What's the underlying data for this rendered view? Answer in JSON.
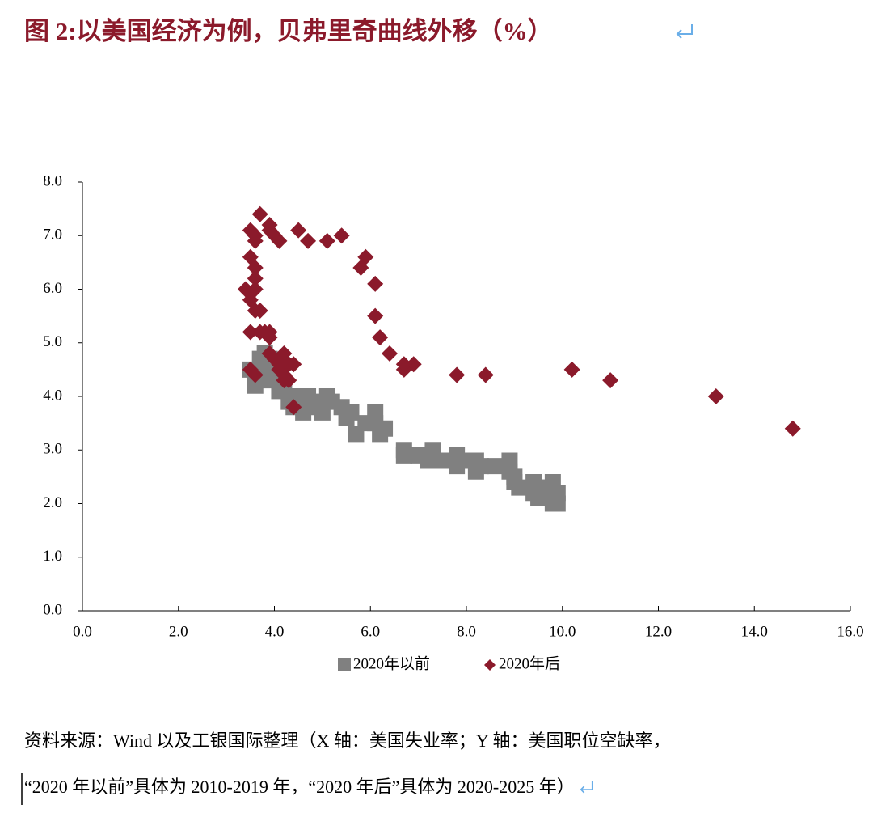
{
  "chart_data": {
    "type": "scatter",
    "title": "图 2:以美国经济为例，贝弗里奇曲线外移（%）",
    "note": [
      "资料来源：Wind 以及工银国际整理（X 轴：美国失业率；Y 轴：美国职位空缺率，",
      "“2020 年以前”具体为 2010-2019 年，“2020 年后”具体为 2020-2025 年）"
    ],
    "xlim": [
      0,
      16
    ],
    "xticks": [
      {
        "value": 0,
        "label": "0.0"
      },
      {
        "value": 2,
        "label": "2.0"
      },
      {
        "value": 4,
        "label": "4.0"
      },
      {
        "value": 6,
        "label": "6.0"
      },
      {
        "value": 8,
        "label": "8.0"
      },
      {
        "value": 10,
        "label": "10.0"
      },
      {
        "value": 12,
        "label": "12.0"
      },
      {
        "value": 14,
        "label": "14.0"
      },
      {
        "value": 16,
        "label": "16.0"
      }
    ],
    "ylim": [
      0,
      8
    ],
    "yticks": [
      {
        "value": 0,
        "label": "0.0"
      },
      {
        "value": 1,
        "label": "1.0"
      },
      {
        "value": 2,
        "label": "2.0"
      },
      {
        "value": 3,
        "label": "3.0"
      },
      {
        "value": 4,
        "label": "4.0"
      },
      {
        "value": 5,
        "label": "5.0"
      },
      {
        "value": 6,
        "label": "6.0"
      },
      {
        "value": 7,
        "label": "7.0"
      },
      {
        "value": 8,
        "label": "8.0"
      }
    ],
    "series": [
      {
        "name": "2020年以前",
        "color": "#808080",
        "marker": "square",
        "x": [
          9.8,
          9.8,
          9.9,
          9.9,
          9.6,
          9.4,
          9.4,
          9.5,
          9.5,
          9.0,
          9.1,
          9.0,
          8.9,
          8.9,
          8.6,
          8.3,
          8.2,
          8.2,
          8.0,
          7.8,
          7.8,
          7.5,
          7.3,
          7.2,
          7.0,
          6.7,
          6.7,
          6.3,
          6.2,
          6.1,
          6.1,
          5.9,
          5.7,
          5.6,
          5.5,
          5.4,
          5.2,
          5.1,
          5.0,
          4.9,
          4.8,
          4.7,
          4.6,
          4.4,
          4.3,
          4.2,
          4.0,
          4.0,
          3.9,
          3.8,
          3.7,
          3.6,
          3.7,
          3.6,
          3.5,
          4.1,
          3.9,
          4.4
        ],
        "values": [
          2.0,
          2.4,
          2.2,
          2.0,
          2.3,
          2.2,
          2.4,
          2.1,
          2.3,
          2.5,
          2.3,
          2.4,
          2.6,
          2.8,
          2.7,
          2.7,
          2.8,
          2.6,
          2.8,
          2.9,
          2.7,
          2.8,
          3.0,
          2.8,
          2.9,
          3.0,
          2.9,
          3.4,
          3.3,
          3.5,
          3.7,
          3.5,
          3.3,
          3.7,
          3.6,
          3.8,
          3.9,
          4.0,
          3.7,
          3.9,
          3.8,
          4.0,
          3.7,
          4.0,
          3.9,
          4.2,
          4.4,
          4.6,
          4.7,
          4.8,
          4.5,
          4.4,
          4.7,
          4.2,
          4.5,
          4.1,
          4.3,
          3.8
        ]
      },
      {
        "name": "2020年后",
        "color": "#8b1a2b",
        "marker": "diamond",
        "x": [
          3.5,
          4.4,
          14.8,
          13.2,
          11.0,
          10.2,
          8.4,
          7.8,
          6.9,
          6.7,
          6.7,
          6.4,
          6.2,
          6.1,
          6.1,
          5.9,
          5.8,
          5.4,
          5.1,
          4.7,
          4.5,
          4.1,
          3.9,
          4.0,
          3.9,
          3.7,
          3.6,
          3.6,
          3.5,
          3.6,
          3.5,
          3.6,
          3.5,
          3.4,
          3.6,
          3.6,
          3.7,
          3.5,
          3.7,
          3.8,
          3.9,
          3.9,
          3.9,
          4.0,
          4.1,
          4.2,
          4.3,
          4.4,
          4.2,
          4.2,
          4.1,
          4.3,
          4.0,
          4.1,
          4.2,
          4.1,
          3.6
        ],
        "values": [
          4.5,
          3.8,
          3.4,
          4.0,
          4.3,
          4.5,
          4.4,
          4.4,
          4.6,
          4.5,
          4.6,
          4.8,
          5.1,
          5.5,
          6.1,
          6.6,
          6.4,
          7.0,
          6.9,
          6.9,
          7.1,
          6.9,
          7.1,
          7.0,
          7.2,
          7.4,
          7.0,
          6.9,
          7.1,
          6.4,
          6.6,
          6.2,
          5.8,
          6.0,
          6.0,
          5.6,
          5.6,
          5.2,
          5.2,
          5.2,
          5.2,
          5.1,
          4.8,
          4.7,
          4.6,
          4.8,
          4.6,
          4.6,
          4.4,
          4.3,
          4.5,
          4.3,
          4.7,
          4.5,
          4.4,
          4.6,
          4.4
        ]
      }
    ]
  }
}
